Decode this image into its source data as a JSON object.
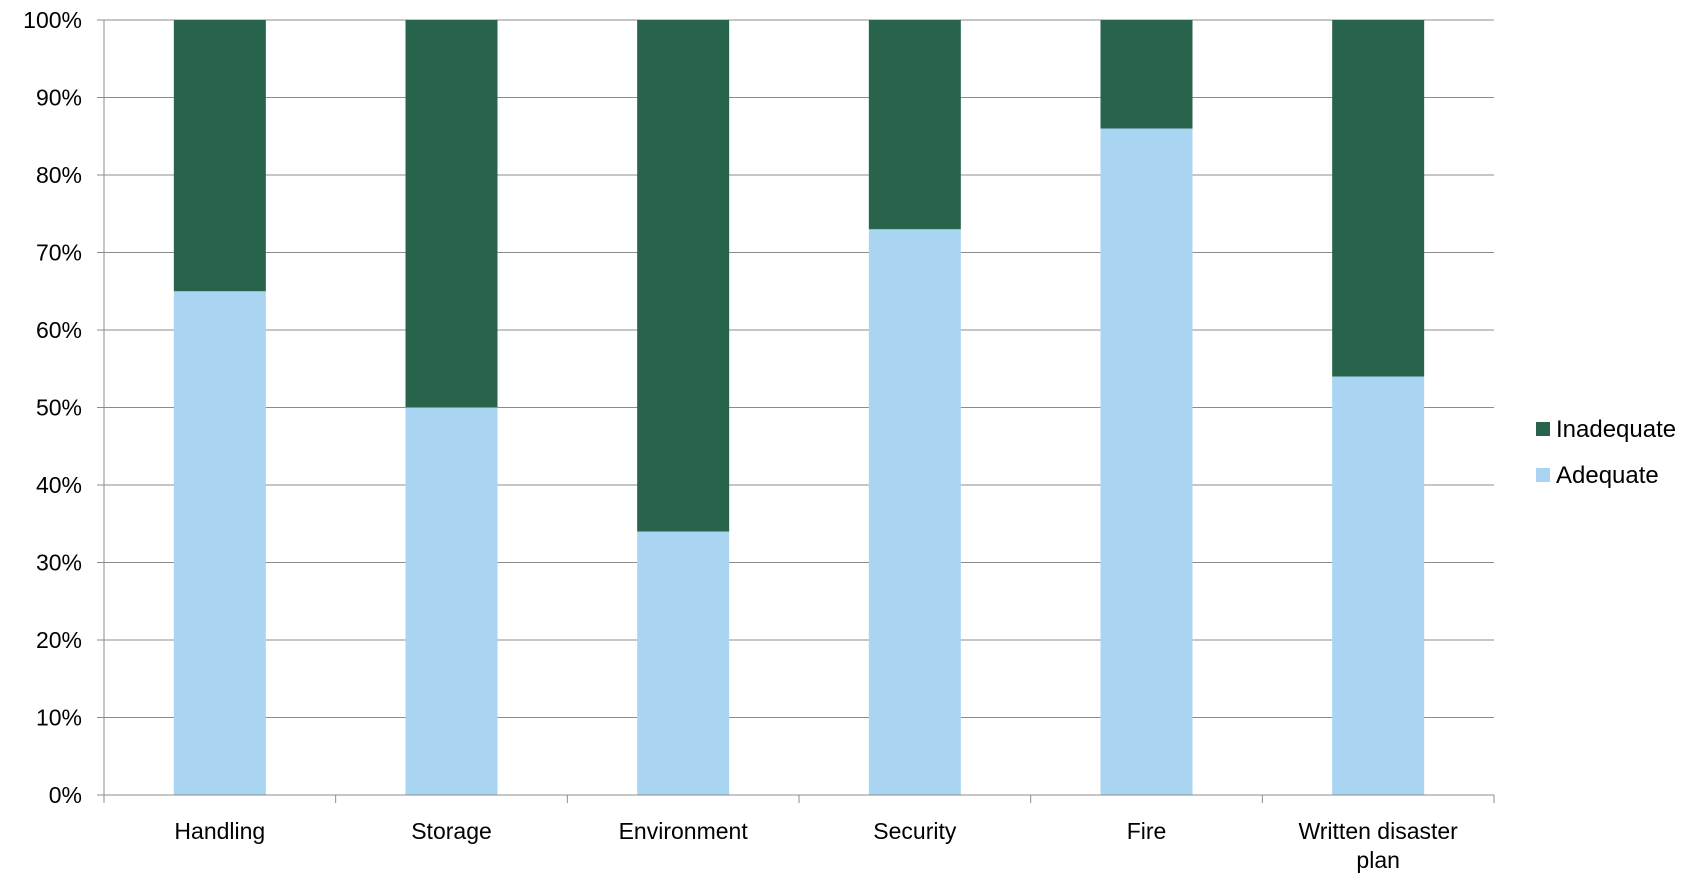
{
  "chart_data": {
    "type": "bar",
    "stacked": true,
    "percent": true,
    "categories": [
      "Handling",
      "Storage",
      "Environment",
      "Security",
      "Fire",
      "Written disaster plan"
    ],
    "category_label_lines": [
      [
        "Handling"
      ],
      [
        "Storage"
      ],
      [
        "Environment"
      ],
      [
        "Security"
      ],
      [
        "Fire"
      ],
      [
        "Written disaster",
        "plan"
      ]
    ],
    "series": [
      {
        "name": "Adequate",
        "values": [
          65,
          50,
          34,
          73,
          86,
          54
        ],
        "color": "#a9d5f2"
      },
      {
        "name": "Inadequate",
        "values": [
          35,
          50,
          66,
          27,
          14,
          46
        ],
        "color": "#28634b"
      }
    ],
    "ylim": [
      0,
      100
    ],
    "yticks": [
      0,
      10,
      20,
      30,
      40,
      50,
      60,
      70,
      80,
      90,
      100
    ],
    "ytick_labels": [
      "0%",
      "10%",
      "20%",
      "30%",
      "40%",
      "50%",
      "60%",
      "70%",
      "80%",
      "90%",
      "100%"
    ],
    "grid": true,
    "legend_position": "right",
    "legend_order": [
      "Inadequate",
      "Adequate"
    ],
    "title": "",
    "xlabel": "",
    "ylabel": ""
  }
}
